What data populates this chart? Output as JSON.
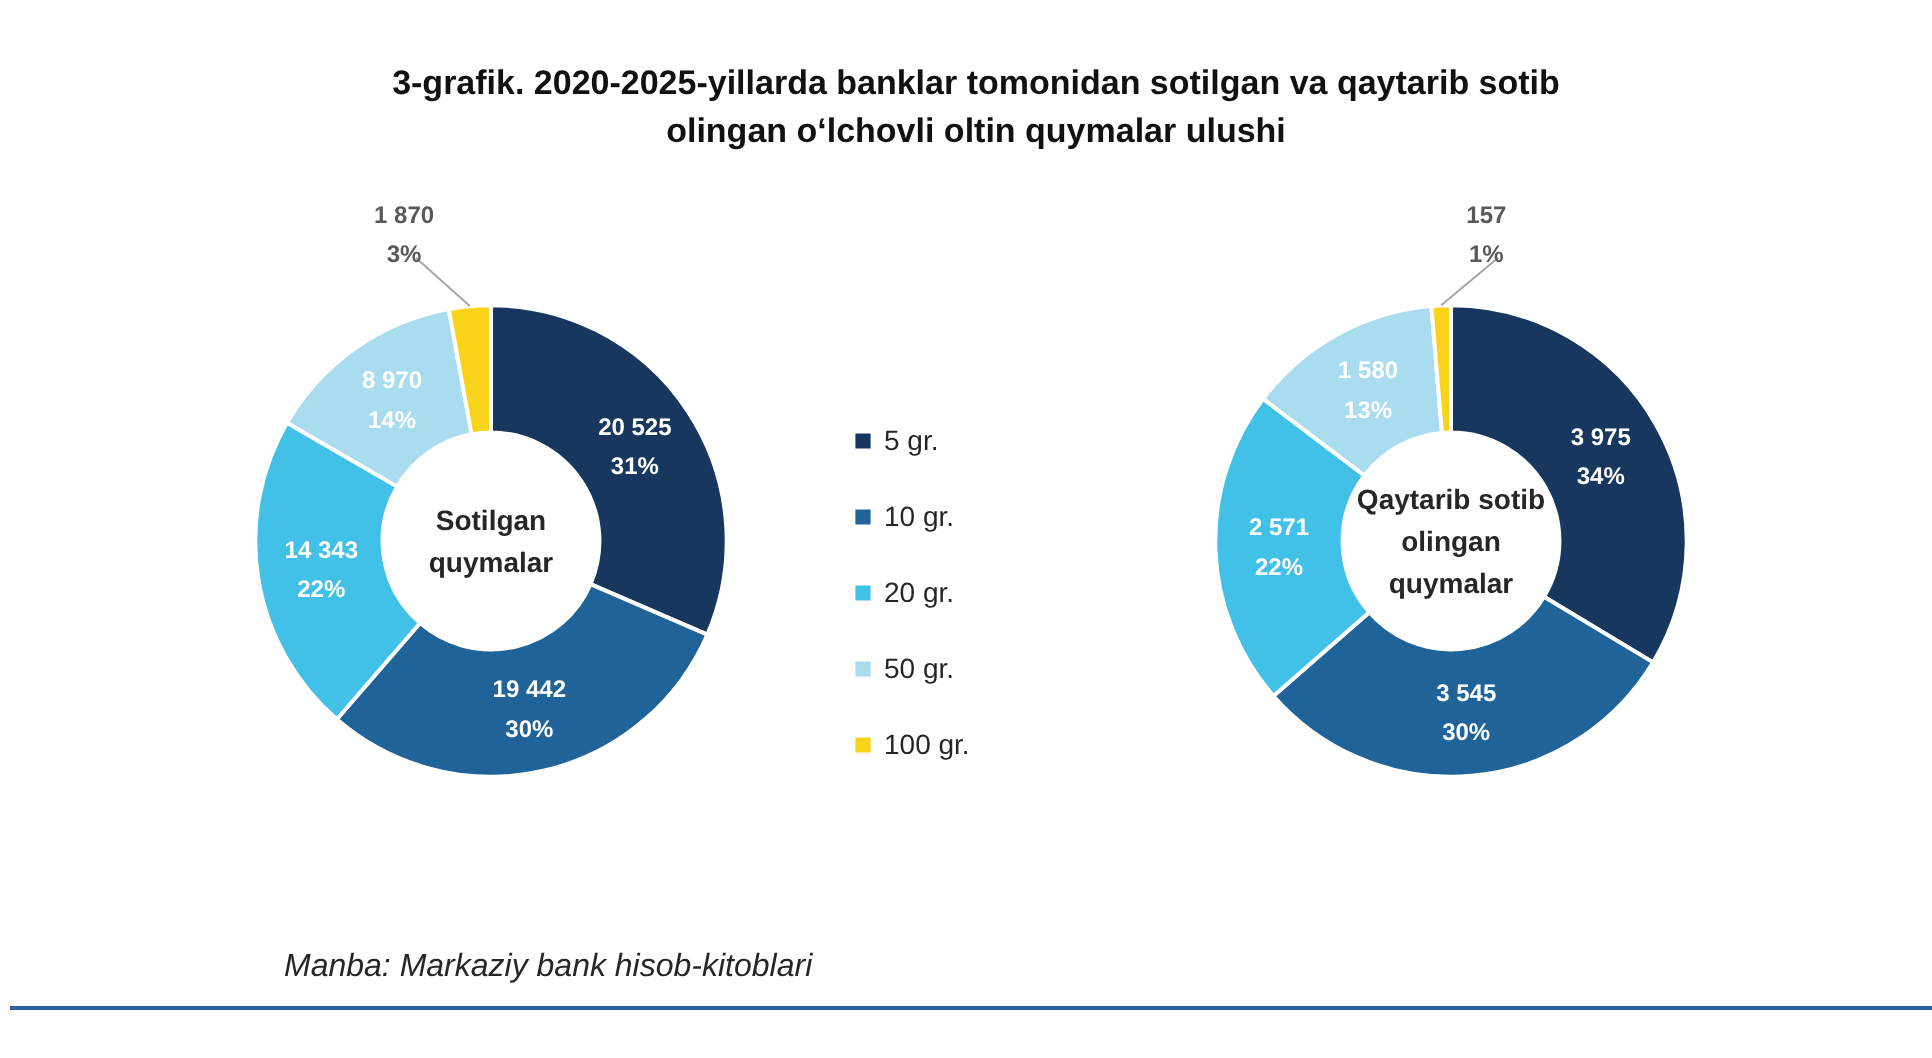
{
  "chart_data": [
    {
      "type": "donut",
      "title": "3-grafik. 2020-2025-yillarda banklar tomonidan sotilgan va qaytarib sotib olingan o‘lchovli oltin quymalar ulushi",
      "categories": [
        "5 gr.",
        "10 gr.",
        "20 gr.",
        "50 gr.",
        "100 gr."
      ],
      "values": [
        20525,
        19442,
        14343,
        8970,
        1870
      ],
      "colors": [
        "#17375e",
        "#1f6399",
        "#41c0e8",
        "#a9dcef",
        "#f9d21a"
      ],
      "value_labels": [
        "20 525\n31%",
        "19 442\n30%",
        "14 343\n22%",
        "8 970\n14%",
        "1 870\n3%"
      ],
      "legend": "right",
      "annotations": [
        "Sotilgan\nquymalar",
        "Manba: Markaziy bank hisob-kitoblari"
      ]
    },
    {
      "type": "donut",
      "categories": [
        null,
        null,
        null,
        null,
        null
      ],
      "values": [
        3975,
        3545,
        2571,
        1580,
        157
      ],
      "colors": [
        "#17375e",
        "#1f6399",
        "#41c0e8",
        "#a9dcef",
        "#f9d21a"
      ],
      "value_labels": [
        "3 975\n34%",
        "3 545\n30%",
        "2 571\n22%",
        "1 580\n13%",
        "157\n1%"
      ],
      "annotations": [
        "Qaytarib sotib\nolingan\nquymalar"
      ]
    }
  ]
}
